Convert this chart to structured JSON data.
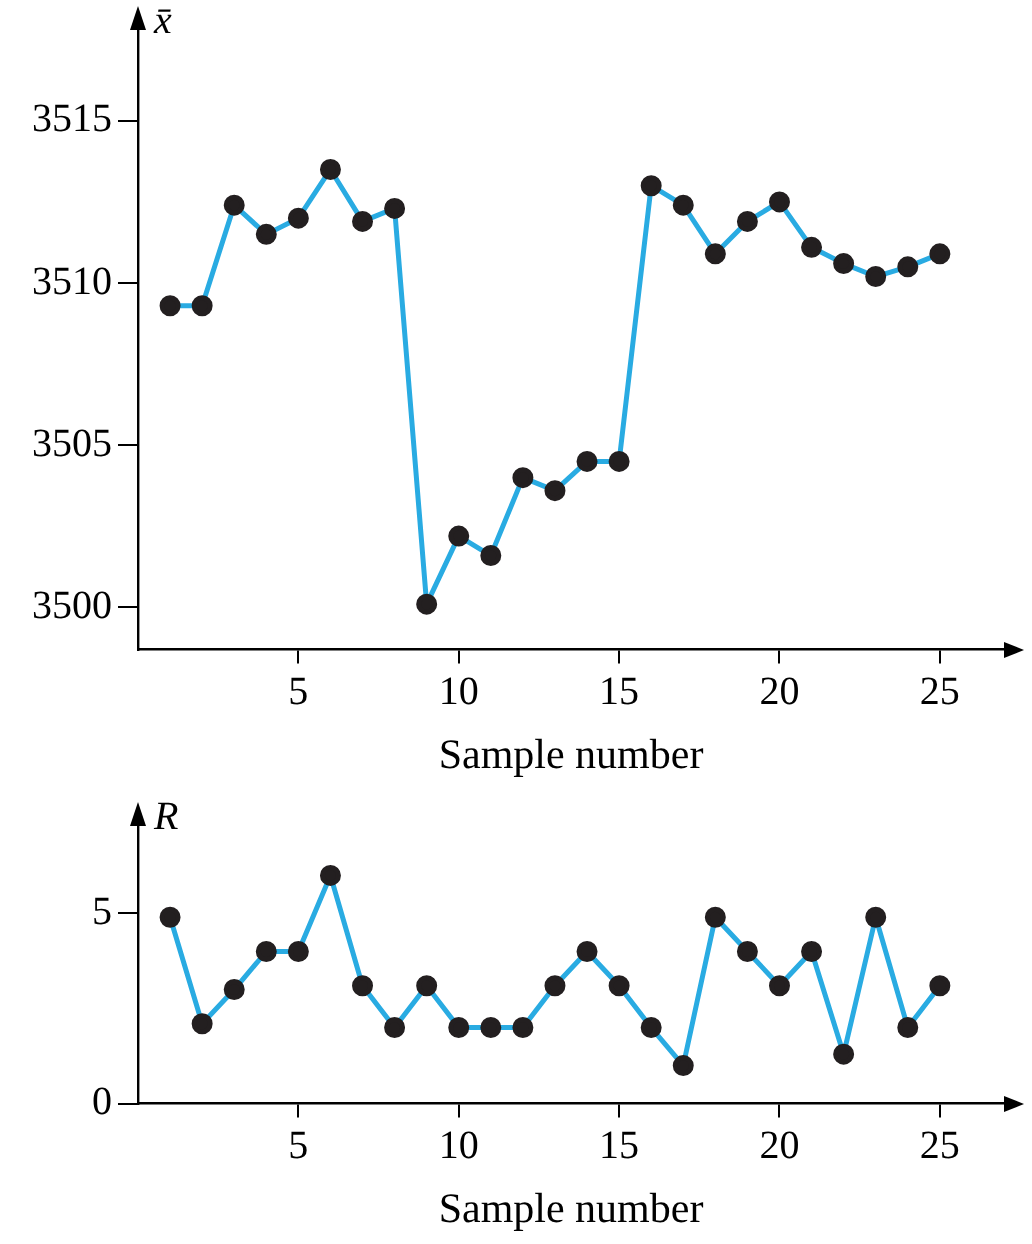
{
  "chart_data": [
    {
      "type": "line",
      "ylabel": "x̄",
      "xlabel": "Sample number",
      "color": "#29abe2",
      "marker": "circle",
      "xlim": [
        0,
        27
      ],
      "ylim": [
        3498.7,
        3517.8
      ],
      "xticks": [
        5,
        10,
        15,
        20,
        25
      ],
      "yticks": [
        3500,
        3505,
        3510,
        3515
      ],
      "x": [
        1,
        2,
        3,
        4,
        5,
        6,
        7,
        8,
        9,
        10,
        11,
        12,
        13,
        14,
        15,
        16,
        17,
        18,
        19,
        20,
        21,
        22,
        23,
        24,
        25
      ],
      "values": [
        3509.3,
        3509.3,
        3512.4,
        3511.5,
        3512.0,
        3513.5,
        3511.9,
        3512.3,
        3500.1,
        3502.2,
        3501.6,
        3504.0,
        3503.6,
        3504.5,
        3504.5,
        3513.0,
        3512.4,
        3510.9,
        3511.9,
        3512.5,
        3511.1,
        3510.6,
        3510.2,
        3510.5,
        3510.9
      ]
    },
    {
      "type": "line",
      "ylabel": "R",
      "xlabel": "Sample number",
      "color": "#29abe2",
      "marker": "circle",
      "xlim": [
        0,
        27
      ],
      "ylim": [
        0,
        7.3
      ],
      "xticks": [
        5,
        10,
        15,
        20,
        25
      ],
      "yticks": [
        0,
        5
      ],
      "x": [
        1,
        2,
        3,
        4,
        5,
        6,
        7,
        8,
        9,
        10,
        11,
        12,
        13,
        14,
        15,
        16,
        17,
        18,
        19,
        20,
        21,
        22,
        23,
        24,
        25
      ],
      "values": [
        4.9,
        2.1,
        3.0,
        4.0,
        4.0,
        6.0,
        3.1,
        2.0,
        3.1,
        2.0,
        2.0,
        2.0,
        3.1,
        4.0,
        3.1,
        2.0,
        1.0,
        4.9,
        4.0,
        3.1,
        4.0,
        1.3,
        4.9,
        2.0,
        3.1
      ]
    }
  ]
}
